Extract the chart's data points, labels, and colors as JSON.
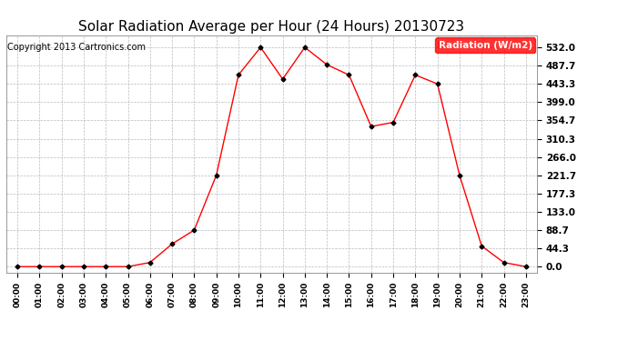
{
  "title": "Solar Radiation Average per Hour (24 Hours) 20130723",
  "copyright": "Copyright 2013 Cartronics.com",
  "legend_label": "Radiation (W/m2)",
  "hours": [
    "00:00",
    "01:00",
    "02:00",
    "03:00",
    "04:00",
    "05:00",
    "06:00",
    "07:00",
    "08:00",
    "09:00",
    "10:00",
    "11:00",
    "12:00",
    "13:00",
    "14:00",
    "15:00",
    "16:00",
    "17:00",
    "18:00",
    "19:00",
    "20:00",
    "21:00",
    "22:00",
    "23:00"
  ],
  "values": [
    0.0,
    0.0,
    0.0,
    0.0,
    0.0,
    0.0,
    10.0,
    55.0,
    88.7,
    221.7,
    465.0,
    532.0,
    455.0,
    532.0,
    490.0,
    465.0,
    340.0,
    350.0,
    465.0,
    443.3,
    221.7,
    50.0,
    10.0,
    0.0
  ],
  "yticks": [
    0.0,
    44.3,
    88.7,
    133.0,
    177.3,
    221.7,
    266.0,
    310.3,
    354.7,
    399.0,
    443.3,
    487.7,
    532.0
  ],
  "line_color": "red",
  "marker_color": "black",
  "bg_color": "#ffffff",
  "plot_bg_color": "#ffffff",
  "grid_color": "#bbbbbb",
  "title_fontsize": 11,
  "legend_bg": "red",
  "legend_text_color": "white",
  "copyright_color": "black",
  "copyright_fontsize": 7
}
